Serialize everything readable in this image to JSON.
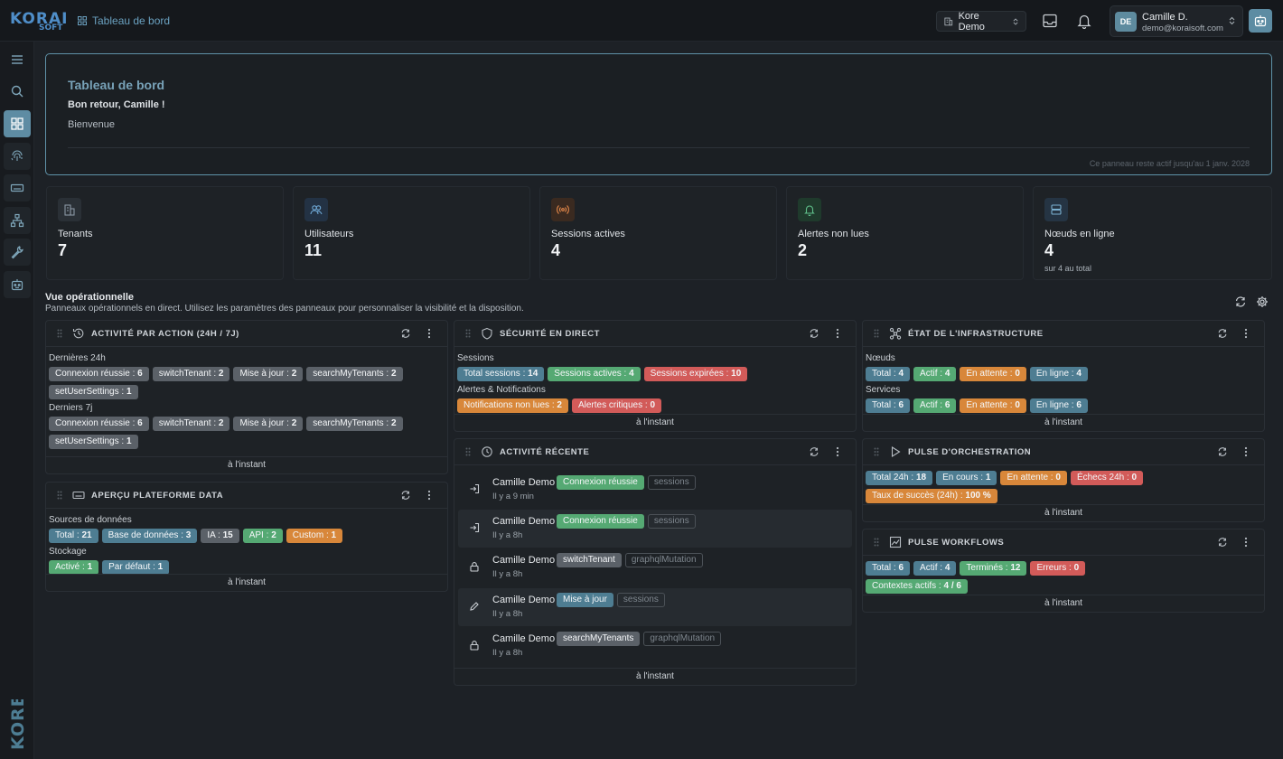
{
  "header": {
    "logo_top": "KORAI",
    "logo_bottom": "SOFT",
    "breadcrumb": "Tableau de bord",
    "tenant": "Kore Demo",
    "user_initials": "DE",
    "user_name": "Camille D.",
    "user_email": "demo@koraisoft.com"
  },
  "sidebar": {
    "items": [
      "menu-icon",
      "search-icon",
      "dashboard-icon",
      "fingerprint-icon",
      "keyboard-icon",
      "network-icon",
      "wrench-icon",
      "robot-icon"
    ],
    "brand": "KORE"
  },
  "hero": {
    "title": "Tableau de bord",
    "subtitle": "Bon retour, Camille !",
    "text": "Bienvenue",
    "footer": "Ce panneau reste actif jusqu'au 1 janv. 2028"
  },
  "kpis": [
    {
      "label": "Tenants",
      "value": "7",
      "icon": "building-icon",
      "color": "#8a96a3",
      "bg": "#2a3036"
    },
    {
      "label": "Utilisateurs",
      "value": "11",
      "icon": "users-icon",
      "color": "#6fa9d6",
      "bg": "#233244"
    },
    {
      "label": "Sessions actives",
      "value": "4",
      "icon": "broadcast-icon",
      "color": "#e5894a",
      "bg": "#3a2a20"
    },
    {
      "label": "Alertes non lues",
      "value": "2",
      "icon": "bell-icon",
      "color": "#5fbf8a",
      "bg": "#1f3a2c"
    },
    {
      "label": "Nœuds en ligne",
      "value": "4",
      "sub": "sur 4 au total",
      "icon": "server-icon",
      "color": "#7ab0d0",
      "bg": "#253443"
    }
  ],
  "section": {
    "title": "Vue opérationnelle",
    "subtitle": "Panneaux opérationnels en direct. Utilisez les paramètres des panneaux pour personnaliser la visibilité et la disposition."
  },
  "panels": {
    "activity_by_action": {
      "title": "ACTIVITÉ PAR ACTION (24H / 7J)",
      "footer": "à l'instant",
      "groups": [
        {
          "label": "Dernières 24h",
          "tags": [
            {
              "k": "Connexion réussie",
              "v": "6"
            },
            {
              "k": "switchTenant",
              "v": "2"
            },
            {
              "k": "Mise à jour",
              "v": "2"
            },
            {
              "k": "searchMyTenants",
              "v": "2"
            },
            {
              "k": "setUserSettings",
              "v": "1"
            }
          ]
        },
        {
          "label": "Derniers 7j",
          "tags": [
            {
              "k": "Connexion réussie",
              "v": "6"
            },
            {
              "k": "switchTenant",
              "v": "2"
            },
            {
              "k": "Mise à jour",
              "v": "2"
            },
            {
              "k": "searchMyTenants",
              "v": "2"
            },
            {
              "k": "setUserSettings",
              "v": "1"
            }
          ]
        }
      ]
    },
    "data_platform": {
      "title": "APERÇU PLATEFORME DATA",
      "footer": "à l'instant",
      "groups": [
        {
          "label": "Sources de données",
          "tags": [
            {
              "k": "Total",
              "v": "21",
              "c": "blue"
            },
            {
              "k": "Base de données",
              "v": "3",
              "c": "blue"
            },
            {
              "k": "IA",
              "v": "15",
              "c": "grey"
            },
            {
              "k": "API",
              "v": "2",
              "c": "green"
            },
            {
              "k": "Custom",
              "v": "1",
              "c": "orange"
            }
          ]
        },
        {
          "label": "Stockage",
          "tags": [
            {
              "k": "Activé",
              "v": "1",
              "c": "green"
            },
            {
              "k": "Par défaut",
              "v": "1",
              "c": "blue"
            }
          ]
        }
      ]
    },
    "security": {
      "title": "SÉCURITÉ EN DIRECT",
      "footer": "à l'instant",
      "groups": [
        {
          "label": "Sessions",
          "tags": [
            {
              "k": "Total sessions",
              "v": "14",
              "c": "blue"
            },
            {
              "k": "Sessions actives",
              "v": "4",
              "c": "green"
            },
            {
              "k": "Sessions expirées",
              "v": "10",
              "c": "red"
            }
          ]
        },
        {
          "label": "Alertes & Notifications",
          "tags": [
            {
              "k": "Notifications non lues",
              "v": "2",
              "c": "orange"
            },
            {
              "k": "Alertes critiques",
              "v": "0",
              "c": "red"
            }
          ]
        }
      ]
    },
    "recent_activity": {
      "title": "ACTIVITÉ RÉCENTE",
      "footer": "à l'instant",
      "rows": [
        {
          "user": "Camille Demo",
          "action": "Connexion réussie",
          "action_color": "green",
          "source": "sessions",
          "time": "Il y a 9 min",
          "icon": "login-icon"
        },
        {
          "user": "Camille Demo",
          "action": "Connexion réussie",
          "action_color": "green",
          "source": "sessions",
          "time": "Il y a 8h",
          "icon": "login-icon"
        },
        {
          "user": "Camille Demo",
          "action": "switchTenant",
          "action_color": "grey",
          "source": "graphqlMutation",
          "time": "Il y a 8h",
          "icon": "lock-icon"
        },
        {
          "user": "Camille Demo",
          "action": "Mise à jour",
          "action_color": "blue",
          "source": "sessions",
          "time": "Il y a 8h",
          "icon": "pencil-icon"
        },
        {
          "user": "Camille Demo",
          "action": "searchMyTenants",
          "action_color": "grey",
          "source": "graphqlMutation",
          "time": "Il y a 8h",
          "icon": "lock-icon"
        }
      ]
    },
    "infrastructure": {
      "title": "ÉTAT DE L'INFRASTRUCTURE",
      "footer": "à l'instant",
      "groups": [
        {
          "label": "Nœuds",
          "tags": [
            {
              "k": "Total",
              "v": "4",
              "c": "blue"
            },
            {
              "k": "Actif",
              "v": "4",
              "c": "green"
            },
            {
              "k": "En attente",
              "v": "0",
              "c": "orange"
            },
            {
              "k": "En ligne",
              "v": "4",
              "c": "blue"
            }
          ]
        },
        {
          "label": "Services",
          "tags": [
            {
              "k": "Total",
              "v": "6",
              "c": "blue"
            },
            {
              "k": "Actif",
              "v": "6",
              "c": "green"
            },
            {
              "k": "En attente",
              "v": "0",
              "c": "orange"
            },
            {
              "k": "En ligne",
              "v": "6",
              "c": "blue"
            }
          ]
        }
      ]
    },
    "orchestration": {
      "title": "PULSE D'ORCHESTRATION",
      "footer": "à l'instant",
      "groups": [
        {
          "label": "",
          "tags": [
            {
              "k": "Total 24h",
              "v": "18",
              "c": "blue"
            },
            {
              "k": "En cours",
              "v": "1",
              "c": "blue"
            },
            {
              "k": "En attente",
              "v": "0",
              "c": "orange"
            },
            {
              "k": "Échecs 24h",
              "v": "0",
              "c": "red"
            },
            {
              "k": "Taux de succès (24h)",
              "v": "100 %",
              "c": "orange"
            }
          ]
        }
      ]
    },
    "workflows": {
      "title": "PULSE WORKFLOWS",
      "footer": "à l'instant",
      "groups": [
        {
          "label": "",
          "tags": [
            {
              "k": "Total",
              "v": "6",
              "c": "blue"
            },
            {
              "k": "Actif",
              "v": "4",
              "c": "blue"
            },
            {
              "k": "Terminés",
              "v": "12",
              "c": "green"
            },
            {
              "k": "Erreurs",
              "v": "0",
              "c": "red"
            },
            {
              "k": "Contextes actifs",
              "v": "4 / 6",
              "c": "green"
            }
          ]
        }
      ]
    }
  }
}
